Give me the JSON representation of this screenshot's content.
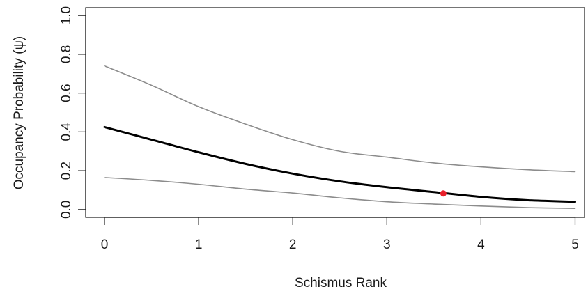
{
  "chart_data": {
    "type": "line",
    "title": "",
    "xlabel": "Schismus Rank",
    "ylabel": "Occupancy Probability (ψ)",
    "xlim": [
      -0.2,
      5.1
    ],
    "ylim": [
      -0.04,
      1.04
    ],
    "x_ticks": [
      0,
      1,
      2,
      3,
      4,
      5
    ],
    "x_tick_labels": [
      "0",
      "1",
      "2",
      "3",
      "4",
      "5"
    ],
    "y_ticks": [
      0.0,
      0.2,
      0.4,
      0.6,
      0.8,
      1.0
    ],
    "y_tick_labels": [
      "0.0",
      "0.2",
      "0.4",
      "0.6",
      "0.8",
      "1.0"
    ],
    "grid": false,
    "x": [
      0,
      0.5,
      1,
      1.5,
      2,
      2.5,
      3,
      3.5,
      4,
      4.5,
      5
    ],
    "series": [
      {
        "values": [
          0.74,
          0.64,
          0.53,
          0.44,
          0.36,
          0.3,
          0.27,
          0.24,
          0.22,
          0.205,
          0.195
        ],
        "color": "#8c8c8c",
        "width": 1.6
      },
      {
        "values": [
          0.425,
          0.36,
          0.295,
          0.235,
          0.185,
          0.145,
          0.115,
          0.09,
          0.065,
          0.048,
          0.04
        ],
        "color": "#000000",
        "width": 3
      },
      {
        "values": [
          0.165,
          0.15,
          0.13,
          0.105,
          0.085,
          0.06,
          0.04,
          0.028,
          0.018,
          0.01,
          0.006
        ],
        "color": "#8c8c8c",
        "width": 1.6
      }
    ],
    "highlight_point": {
      "x": 3.6,
      "y": 0.083,
      "color": "#e8202a"
    }
  }
}
